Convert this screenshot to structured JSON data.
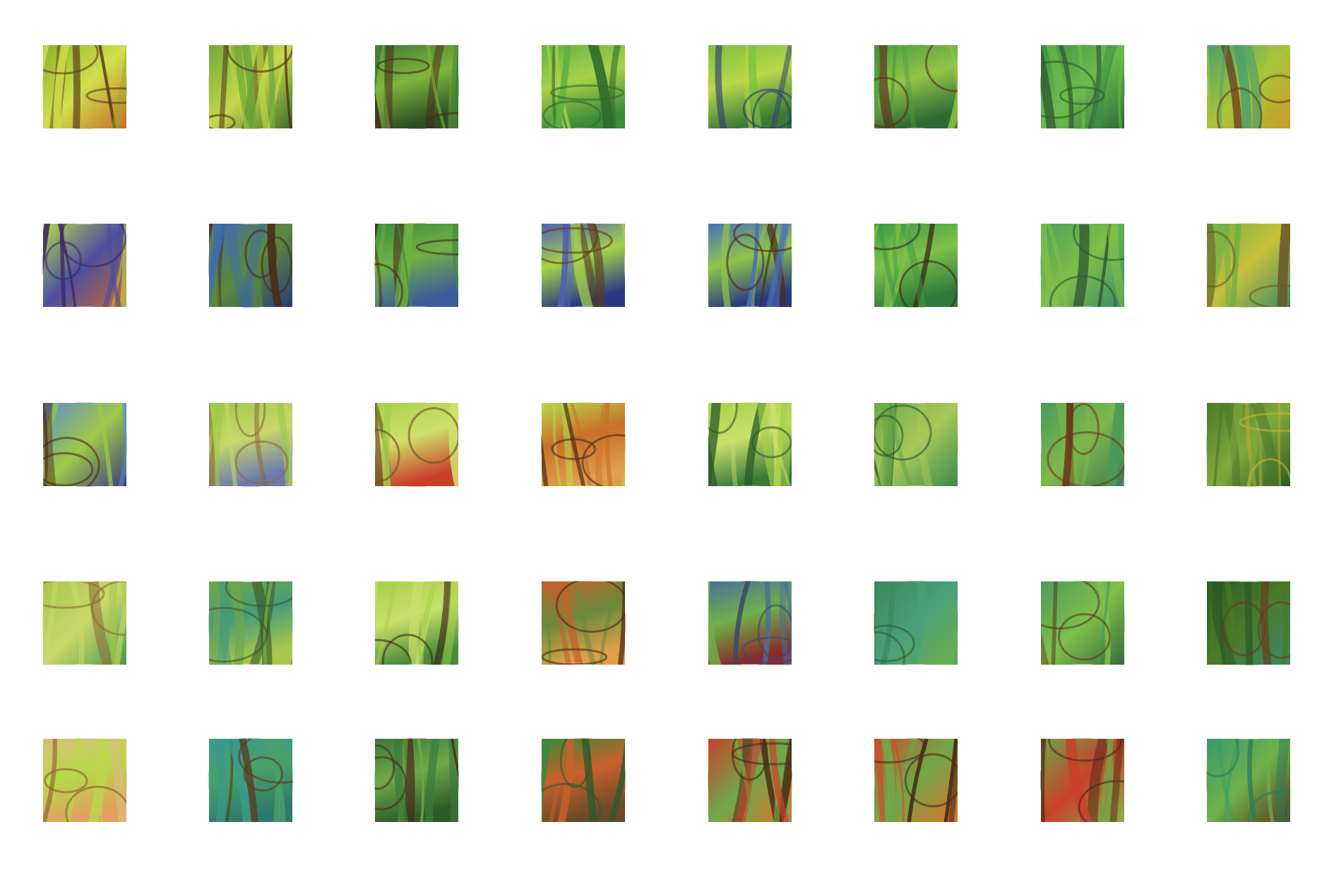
{
  "puzzle": {
    "rows": 5,
    "cols": 8,
    "pieces": [
      {
        "id": "r1c1",
        "tabs": [
          0,
          1,
          1,
          1
        ],
        "colors": [
          "#8fb02c",
          "#cfe04a",
          "#c86a2a",
          "#5a3a1c"
        ]
      },
      {
        "id": "r1c2",
        "tabs": [
          1,
          1,
          1,
          1
        ],
        "colors": [
          "#6fa83a",
          "#c5d84a",
          "#3e6b2a",
          "#4a2a18"
        ]
      },
      {
        "id": "r1c3",
        "tabs": [
          1,
          1,
          1,
          1
        ],
        "colors": [
          "#3f7d35",
          "#7fb53d",
          "#2a4f24",
          "#4a2a18"
        ]
      },
      {
        "id": "r1c4",
        "tabs": [
          1,
          0,
          -1,
          1
        ],
        "colors": [
          "#64b043",
          "#a8d14b",
          "#3c8a3a",
          "#2f6b2a"
        ]
      },
      {
        "id": "r1c5",
        "tabs": [
          0,
          1,
          -1,
          1
        ],
        "colors": [
          "#7cbf3f",
          "#b8d84a",
          "#3b7a34",
          "#2c3a7a"
        ]
      },
      {
        "id": "r1c6",
        "tabs": [
          1,
          0,
          -1,
          1
        ],
        "colors": [
          "#4f9e40",
          "#92c447",
          "#2e6b34",
          "#5a2f1a"
        ]
      },
      {
        "id": "r1c7",
        "tabs": [
          1,
          1,
          1,
          1
        ],
        "colors": [
          "#3f8f44",
          "#6dbb4d",
          "#2b6b3a",
          "#2d5a30"
        ]
      },
      {
        "id": "r1c8",
        "tabs": [
          0,
          0,
          0,
          -1
        ],
        "colors": [
          "#4aa06c",
          "#a8c43a",
          "#c89a2a",
          "#6a3a1c"
        ]
      },
      {
        "id": "r2c1",
        "tabs": [
          -1,
          0,
          -1,
          1
        ],
        "colors": [
          "#b9d84a",
          "#4d4fa0",
          "#c86a2a",
          "#3a2a60"
        ]
      },
      {
        "id": "r2c2",
        "tabs": [
          -1,
          0,
          1,
          1
        ],
        "colors": [
          "#3e6bb0",
          "#5c8a3a",
          "#2a3a7a",
          "#4a2a18"
        ]
      },
      {
        "id": "r2c3",
        "tabs": [
          1,
          -1,
          -1,
          1
        ],
        "colors": [
          "#3f8a3c",
          "#6fb243",
          "#3e5c9a",
          "#4a2a18"
        ]
      },
      {
        "id": "r2c4",
        "tabs": [
          1,
          -1,
          -1,
          1
        ],
        "colors": [
          "#4f5fb0",
          "#a6d34a",
          "#2a3a80",
          "#5a3a1c"
        ]
      },
      {
        "id": "r2c5",
        "tabs": [
          1,
          1,
          -1,
          1
        ],
        "colors": [
          "#4a6fb8",
          "#8fc54a",
          "#2a3a80",
          "#4a2a18"
        ]
      },
      {
        "id": "r2c6",
        "tabs": [
          1,
          0,
          1,
          -1
        ],
        "colors": [
          "#3f9a45",
          "#7fc04a",
          "#2e7a3a",
          "#3a2a18"
        ]
      },
      {
        "id": "r2c7",
        "tabs": [
          -1,
          0,
          -1,
          1
        ],
        "colors": [
          "#4aa05a",
          "#7fbf4a",
          "#3a8a6a",
          "#2d5a30"
        ]
      },
      {
        "id": "r2c8",
        "tabs": [
          1,
          0,
          1,
          1
        ],
        "colors": [
          "#6fb043",
          "#c8c03a",
          "#3a8a6a",
          "#6a5a2a"
        ]
      },
      {
        "id": "r3c1",
        "tabs": [
          1,
          1,
          1,
          0
        ],
        "colors": [
          "#5f8fc8",
          "#9ec84a",
          "#3a3a80",
          "#4a2a18"
        ]
      },
      {
        "id": "r3c2",
        "tabs": [
          0,
          1,
          1,
          -1
        ],
        "colors": [
          "#9fc84a",
          "#c8d86a",
          "#6a7ab0",
          "#8a6a3a"
        ]
      },
      {
        "id": "r3c3",
        "tabs": [
          1,
          0,
          1,
          -1
        ],
        "colors": [
          "#a8d04a",
          "#cfe06a",
          "#c8402a",
          "#6a4a2a"
        ]
      },
      {
        "id": "r3c4",
        "tabs": [
          1,
          1,
          -1,
          1
        ],
        "colors": [
          "#b8d84a",
          "#c8702a",
          "#e0a04a",
          "#4a2a18"
        ]
      },
      {
        "id": "r3c5",
        "tabs": [
          1,
          0,
          -1,
          0
        ],
        "colors": [
          "#a8d04a",
          "#c8e06a",
          "#3a7a3a",
          "#2a5a2a"
        ]
      },
      {
        "id": "r3c6",
        "tabs": [
          -1,
          1,
          -1,
          1
        ],
        "colors": [
          "#6fa84a",
          "#a8c85a",
          "#3a8a4a",
          "#2a5a2a"
        ]
      },
      {
        "id": "r3c7",
        "tabs": [
          1,
          0,
          -1,
          -1
        ],
        "colors": [
          "#4a9a5a",
          "#7fb84a",
          "#3a7a5a",
          "#6a3a1c"
        ]
      },
      {
        "id": "r3c8",
        "tabs": [
          -1,
          0,
          1,
          1
        ],
        "colors": [
          "#4a7a2a",
          "#7fa83a",
          "#2e5a22",
          "#c8b03a"
        ]
      },
      {
        "id": "r4c1",
        "tabs": [
          -1,
          0,
          -1,
          1
        ],
        "colors": [
          "#a8c84a",
          "#c8d86a",
          "#4a9a4a",
          "#8a6a3a"
        ]
      },
      {
        "id": "r4c2",
        "tabs": [
          -1,
          1,
          -1,
          1
        ],
        "colors": [
          "#6fa84a",
          "#4a9a7a",
          "#a8c84a",
          "#3a5a2a"
        ]
      },
      {
        "id": "r4c3",
        "tabs": [
          -1,
          1,
          -1,
          0
        ],
        "colors": [
          "#a8d04a",
          "#c8e06a",
          "#4a8a3a",
          "#3a2a18"
        ]
      },
      {
        "id": "r4c4",
        "tabs": [
          1,
          1,
          -1,
          0
        ],
        "colors": [
          "#c8602a",
          "#6a8a3a",
          "#e0a04a",
          "#4a2a18"
        ]
      },
      {
        "id": "r4c5",
        "tabs": [
          1,
          0,
          -1,
          0
        ],
        "colors": [
          "#4a6f9a",
          "#6fb04a",
          "#8a2a2a",
          "#3a4a6a"
        ]
      },
      {
        "id": "r4c6",
        "tabs": [
          1,
          1,
          -1,
          1
        ],
        "colors": [
          "#3a8a5a",
          "#4aa07a",
          "#6fb04a",
          "#2a5a3a"
        ]
      },
      {
        "id": "r4c7",
        "tabs": [
          1,
          1,
          -1,
          0
        ],
        "colors": [
          "#4a9a5a",
          "#7fbf4a",
          "#3a6a3a",
          "#5a3a1c"
        ]
      },
      {
        "id": "r4c8",
        "tabs": [
          -1,
          0,
          1,
          0
        ],
        "colors": [
          "#2e5a22",
          "#4a7a2a",
          "#3a8a6a",
          "#6a3a1c"
        ]
      },
      {
        "id": "r5c1",
        "tabs": [
          1,
          1,
          0,
          0
        ],
        "colors": [
          "#d8c07a",
          "#b8d84a",
          "#e0a060",
          "#8a5a2a"
        ]
      },
      {
        "id": "r5c2",
        "tabs": [
          1,
          1,
          0,
          1
        ],
        "colors": [
          "#3a9a8a",
          "#4aa06a",
          "#2e7a6a",
          "#5a3a1c"
        ]
      },
      {
        "id": "r5c3",
        "tabs": [
          1,
          1,
          0,
          1
        ],
        "colors": [
          "#3a7a3a",
          "#6fa84a",
          "#2e5a2a",
          "#4a2a18"
        ]
      },
      {
        "id": "r5c4",
        "tabs": [
          1,
          1,
          0,
          1
        ],
        "colors": [
          "#3a8a3a",
          "#c8602a",
          "#6a4a2a",
          "#2e5a2a"
        ]
      },
      {
        "id": "r5c5",
        "tabs": [
          1,
          1,
          0,
          1
        ],
        "colors": [
          "#c8402a",
          "#6fa84a",
          "#e0702a",
          "#4a2a18"
        ]
      },
      {
        "id": "r5c6",
        "tabs": [
          1,
          0,
          0,
          -1
        ],
        "colors": [
          "#c8502a",
          "#6fa84a",
          "#e0702a",
          "#4a2a18"
        ]
      },
      {
        "id": "r5c7",
        "tabs": [
          1,
          0,
          0,
          1
        ],
        "colors": [
          "#6fa84a",
          "#c8402a",
          "#8ab04a",
          "#4a2a18"
        ]
      },
      {
        "id": "r5c8",
        "tabs": [
          -1,
          0,
          0,
          1
        ],
        "colors": [
          "#3a9a6a",
          "#6fb04a",
          "#5a3a1c",
          "#2e7a5a"
        ]
      }
    ]
  }
}
